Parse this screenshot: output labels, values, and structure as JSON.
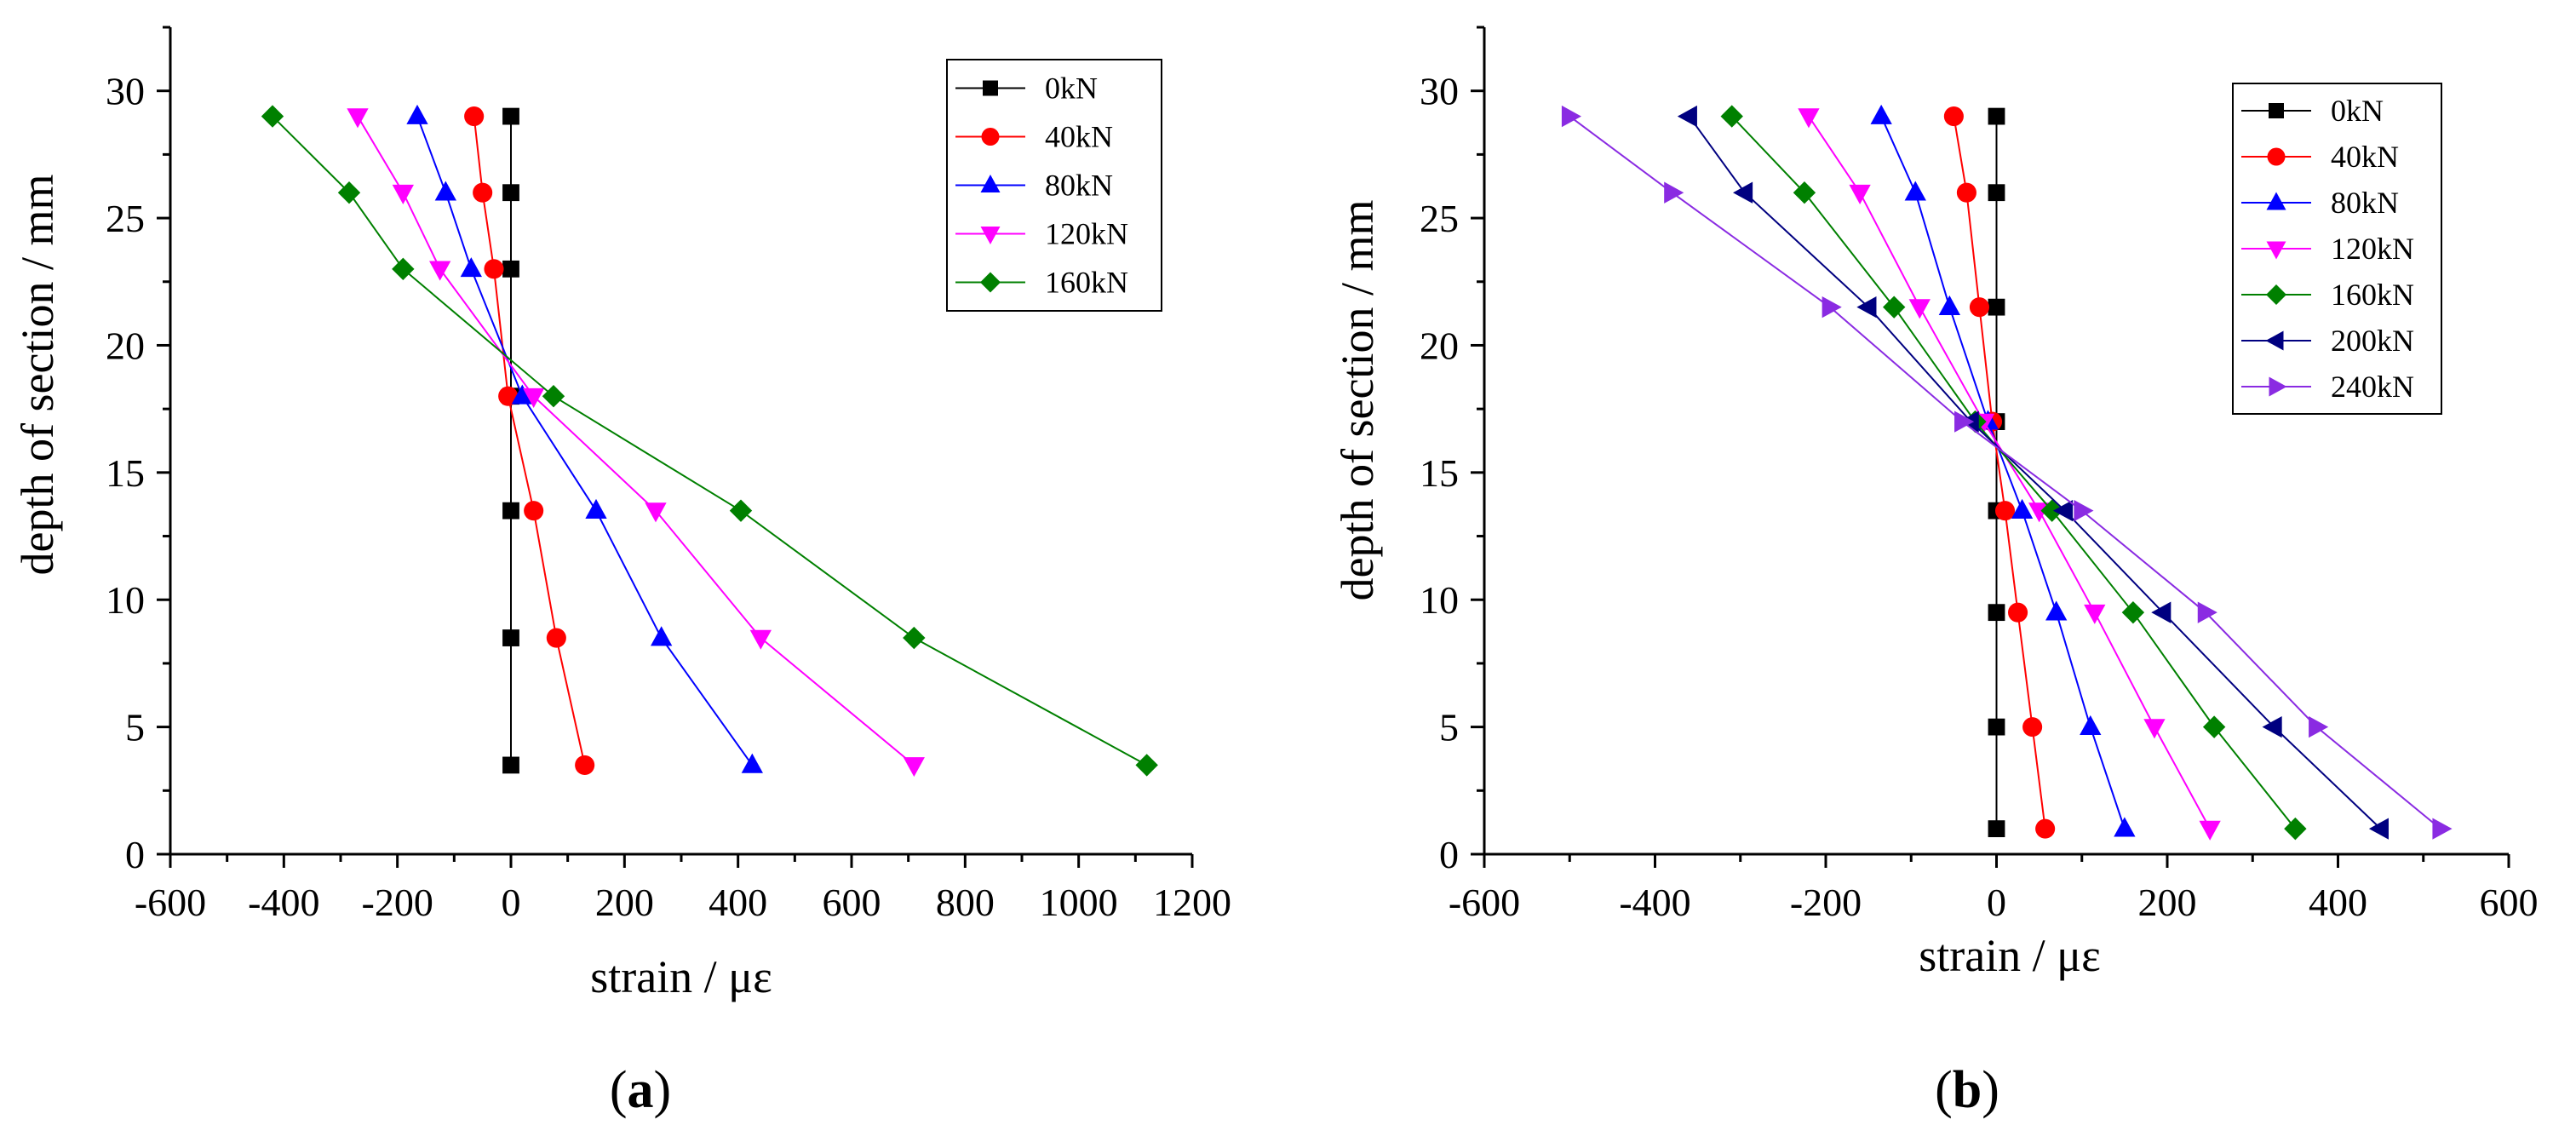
{
  "panels": {
    "a": {
      "label_open": "(",
      "label_letter": "a",
      "label_close": ")"
    },
    "b": {
      "label_open": "(",
      "label_letter": "b",
      "label_close": ")"
    }
  },
  "chart_data": [
    {
      "type": "line",
      "id": "a",
      "title": "",
      "xlabel": "strain / με",
      "ylabel": "depth of section / mm",
      "xlim": [
        -600,
        1200
      ],
      "ylim": [
        0,
        32.5
      ],
      "xticks": [
        -600,
        -400,
        -200,
        0,
        200,
        400,
        600,
        800,
        1000,
        1200
      ],
      "yticks": [
        0,
        5,
        10,
        15,
        20,
        25,
        30
      ],
      "grid": false,
      "legend_position": "top-right",
      "y": [
        29,
        26,
        23,
        18,
        13.5,
        8.5,
        3.5
      ],
      "series": [
        {
          "name": "0kN",
          "marker": "square",
          "color": "#000000",
          "x": [
            0,
            0,
            0,
            0,
            0,
            0,
            0
          ]
        },
        {
          "name": "40kN",
          "marker": "circle",
          "color": "#ff0000",
          "x": [
            -65,
            -50,
            -30,
            -5,
            40,
            80,
            130
          ]
        },
        {
          "name": "80kN",
          "marker": "triangle-up",
          "color": "#0000ff",
          "x": [
            -165,
            -115,
            -70,
            20,
            150,
            265,
            425
          ]
        },
        {
          "name": "120kN",
          "marker": "triangle-down",
          "color": "#ff00ff",
          "x": [
            -270,
            -190,
            -125,
            40,
            255,
            440,
            710
          ]
        },
        {
          "name": "160kN",
          "marker": "diamond",
          "color": "#008000",
          "x": [
            -420,
            -285,
            -190,
            75,
            405,
            710,
            1120
          ]
        }
      ]
    },
    {
      "type": "line",
      "id": "b",
      "title": "",
      "xlabel": "strain / με",
      "ylabel": "depth of section / mm",
      "xlim": [
        -600,
        600
      ],
      "ylim": [
        0,
        32.5
      ],
      "xticks": [
        -600,
        -400,
        -200,
        0,
        200,
        400,
        600
      ],
      "yticks": [
        0,
        5,
        10,
        15,
        20,
        25,
        30
      ],
      "grid": false,
      "legend_position": "top-right",
      "y": [
        29,
        26,
        21.5,
        17,
        13.5,
        9.5,
        5,
        1
      ],
      "series": [
        {
          "name": "0kN",
          "marker": "square",
          "color": "#000000",
          "x": [
            0,
            0,
            0,
            0,
            0,
            0,
            0,
            0
          ]
        },
        {
          "name": "40kN",
          "marker": "circle",
          "color": "#ff0000",
          "x": [
            -50,
            -35,
            -20,
            -5,
            10,
            25,
            42,
            57
          ]
        },
        {
          "name": "80kN",
          "marker": "triangle-up",
          "color": "#0000ff",
          "x": [
            -135,
            -95,
            -55,
            -10,
            30,
            70,
            110,
            150
          ]
        },
        {
          "name": "120kN",
          "marker": "triangle-down",
          "color": "#ff00ff",
          "x": [
            -220,
            -160,
            -90,
            -15,
            50,
            115,
            185,
            250
          ]
        },
        {
          "name": "160kN",
          "marker": "diamond",
          "color": "#008000",
          "x": [
            -310,
            -225,
            -120,
            -25,
            65,
            160,
            255,
            350
          ]
        },
        {
          "name": "200kN",
          "marker": "triangle-left",
          "color": "#000080",
          "x": [
            -360,
            -295,
            -150,
            -30,
            80,
            195,
            325,
            450
          ]
        },
        {
          "name": "240kN",
          "marker": "triangle-right",
          "color": "#8a2be2",
          "x": [
            -500,
            -380,
            -195,
            -40,
            100,
            245,
            375,
            520
          ]
        }
      ]
    }
  ]
}
